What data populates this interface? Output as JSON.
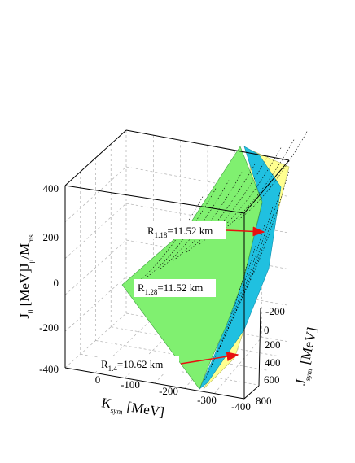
{
  "chart_data": {
    "type": "surface3d",
    "title": "",
    "zlabel": {
      "main": "J",
      "sub0": "0",
      "rest": " [MeV]",
      "suffix": "J",
      "suffix_sub": "μ",
      "tail": "/M",
      "tail_sub": "ms"
    },
    "xlabel": {
      "main": "K",
      "sub": "sym",
      "rest": " [MeV]"
    },
    "ylabel": {
      "main": "J",
      "sub": "sym",
      "rest": " [MeV]"
    },
    "z_ticks": [
      "400",
      "200",
      "0",
      "-200",
      "-400"
    ],
    "x_ticks": [
      "0",
      "-100",
      "-200",
      "-300",
      "-400"
    ],
    "y_ticks": [
      "-200",
      "0",
      "200",
      "400",
      "600",
      "800"
    ],
    "xlim": [
      100,
      -400
    ],
    "ylim": [
      -200,
      800
    ],
    "zlim": [
      -400,
      400
    ],
    "grid": true,
    "surfaces": [
      {
        "name": "R_1.28",
        "color": "#80f070"
      },
      {
        "name": "R_1.18",
        "color": "#20c0e0"
      },
      {
        "name": "R_1.4",
        "color": "#ffff90"
      }
    ],
    "annotations": [
      {
        "main": "R",
        "sub": "1.18",
        "text": "=11.52 km",
        "arrow": true
      },
      {
        "main": "R",
        "sub": "1.28",
        "text": "=11.52 km",
        "arrow": false
      },
      {
        "main": "R",
        "sub": "1.4",
        "text": "=10.62 km",
        "arrow": true
      }
    ],
    "arrow_color": "#e81010"
  }
}
